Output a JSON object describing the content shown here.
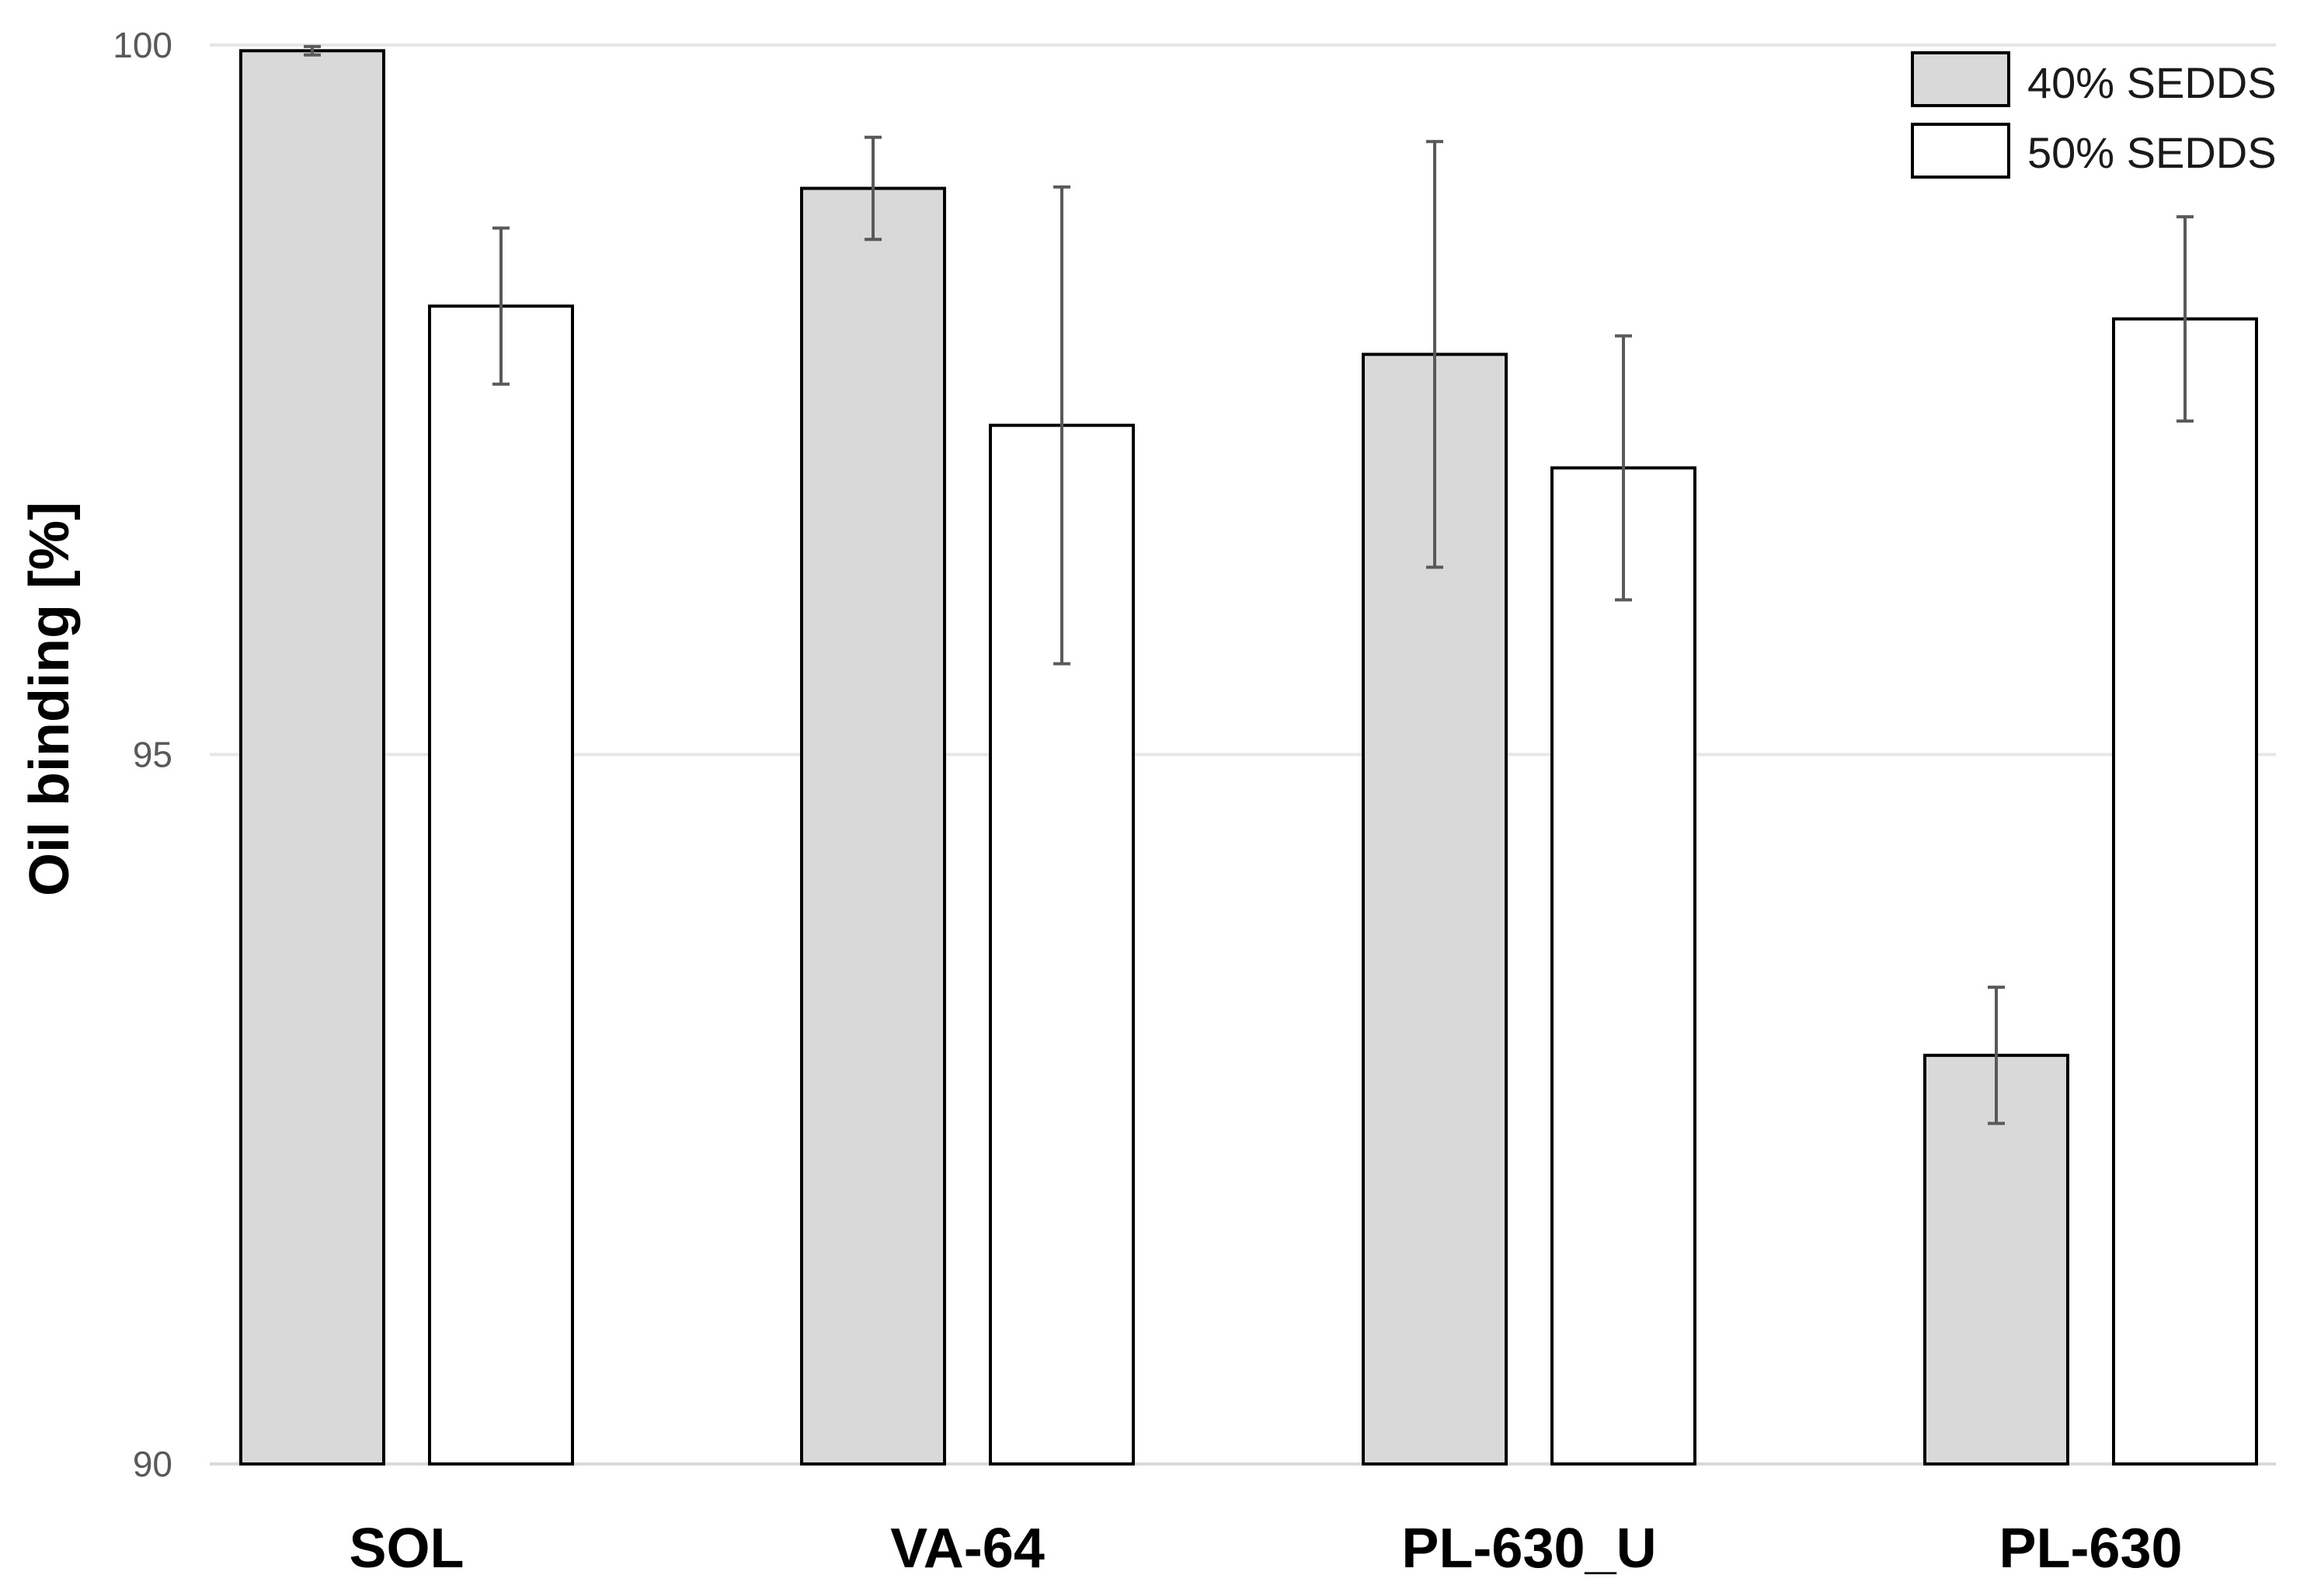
{
  "chart_data": {
    "type": "bar",
    "title": "",
    "xlabel": "",
    "ylabel": "Oil binding [%]",
    "ylim": [
      90,
      100
    ],
    "yticks": [
      90,
      95,
      100
    ],
    "grid": true,
    "legend_position": "top-right",
    "categories": [
      "SOL",
      "VA-64",
      "PL-630_U",
      "PL-630"
    ],
    "series": [
      {
        "name": "40% SEDDS",
        "color": "#d9d9d9",
        "values": [
          99.96,
          98.99,
          97.82,
          92.88
        ],
        "errors": [
          0.03,
          0.36,
          1.5,
          0.48
        ]
      },
      {
        "name": "50% SEDDS",
        "color": "#ffffff",
        "values": [
          98.16,
          97.32,
          97.02,
          98.07
        ],
        "errors": [
          0.55,
          1.68,
          0.93,
          0.72
        ]
      }
    ]
  },
  "colors": {
    "bar_stroke": "#000000",
    "error_bar": "#595959",
    "grid": "#e6e6e6",
    "axis": "#d9d9d9"
  }
}
